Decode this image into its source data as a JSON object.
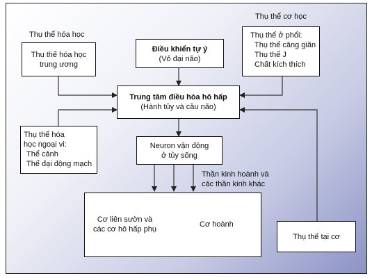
{
  "chemoreceptors": {
    "label": "Thụ thể hóa học",
    "central": [
      "Thụ thể hóa học",
      "trung ương"
    ]
  },
  "control": {
    "title": "Điều khiển tự ý",
    "subtitle": "(Vỏ đại não)"
  },
  "mechanoreceptors": {
    "label": "Thụ thể cơ học",
    "lines": [
      "Thụ thể ở phổi:",
      "Thụ thể căng giãn",
      "Thụ thể J",
      "Chất kích thích"
    ]
  },
  "center": {
    "title": "Trung tâm điều hòa hô hấp",
    "subtitle": "(Hành tủy và cầu não)"
  },
  "peripheral": {
    "lines": [
      "Thụ thể hóa",
      "học ngoại vi:",
      "Thể cảnh",
      "Thể đại động mạch"
    ]
  },
  "motor_neurons": {
    "lines": [
      "Neuron vận động",
      "ở tủy sống"
    ]
  },
  "nerves": {
    "lines": [
      "Thần kinh hoành và",
      "các thần kinh khác"
    ]
  },
  "muscles": {
    "intercostal": [
      "Cơ liên sườn và",
      "các cơ hô hấp phụ"
    ],
    "diaphragm": "Cơ hoành"
  },
  "muscle_receptor": {
    "label": "Thụ thể tại cơ"
  }
}
